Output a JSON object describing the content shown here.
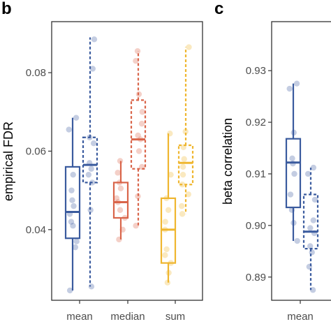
{
  "chart_data": [
    {
      "panel": "b",
      "type": "boxplot",
      "ylabel": "empirical FDR",
      "ylim": [
        0.022,
        0.093
      ],
      "yticks": [
        0.04,
        0.06,
        0.08
      ],
      "ytick_labels": [
        "0.04",
        "0.06",
        "0.08"
      ],
      "categories": [
        "mean",
        "median",
        "sum"
      ],
      "grid": false,
      "groups": [
        {
          "category": "mean",
          "color": "#3a5b9e",
          "boxes": [
            {
              "style": "solid",
              "min": 0.0245,
              "q1": 0.0378,
              "median": 0.0445,
              "q3": 0.056,
              "max": 0.0685,
              "points": [
                0.0685,
                0.0655,
                0.054,
                0.05,
                0.0475,
                0.046,
                0.044,
                0.042,
                0.041,
                0.037,
                0.0355,
                0.0245
              ]
            },
            {
              "style": "dashed",
              "min": 0.0255,
              "q1": 0.052,
              "median": 0.0565,
              "q3": 0.0635,
              "max": 0.089,
              "points": [
                0.0885,
                0.081,
                0.0635,
                0.062,
                0.057,
                0.0555,
                0.054,
                0.052,
                0.045,
                0.0255
              ]
            }
          ]
        },
        {
          "category": "median",
          "color": "#d9654a",
          "boxes": [
            {
              "style": "solid",
              "min": 0.0375,
              "q1": 0.043,
              "median": 0.047,
              "q3": 0.052,
              "max": 0.0575,
              "points": [
                0.0575,
                0.0545,
                0.052,
                0.0505,
                0.048,
                0.047,
                0.045,
                0.043,
                0.04,
                0.0375
              ]
            },
            {
              "style": "dashed",
              "min": 0.041,
              "q1": 0.0555,
              "median": 0.063,
              "q3": 0.073,
              "max": 0.0855,
              "points": [
                0.0855,
                0.083,
                0.0745,
                0.07,
                0.067,
                0.064,
                0.063,
                0.06,
                0.056,
                0.0485,
                0.041
              ]
            }
          ]
        },
        {
          "category": "sum",
          "color": "#efb62f",
          "boxes": [
            {
              "style": "solid",
              "min": 0.0265,
              "q1": 0.0315,
              "median": 0.04,
              "q3": 0.048,
              "max": 0.0645,
              "points": [
                0.0645,
                0.054,
                0.048,
                0.045,
                0.042,
                0.04,
                0.035,
                0.0335,
                0.0315,
                0.029,
                0.0265
              ]
            },
            {
              "style": "dashed",
              "min": 0.044,
              "q1": 0.0515,
              "median": 0.057,
              "q3": 0.0615,
              "max": 0.0865,
              "points": [
                0.0865,
                0.065,
                0.061,
                0.058,
                0.056,
                0.054,
                0.0515,
                0.049,
                0.046,
                0.044
              ]
            }
          ]
        }
      ]
    },
    {
      "panel": "c",
      "type": "boxplot",
      "ylabel": "beta correlation",
      "ylim": [
        0.8855,
        0.9395
      ],
      "yticks": [
        0.89,
        0.9,
        0.91,
        0.92,
        0.93
      ],
      "ytick_labels": [
        "0.89",
        "0.90",
        "0.91",
        "0.92",
        "0.93"
      ],
      "categories": [
        "mean"
      ],
      "truncated_tick": "m",
      "grid": false,
      "groups": [
        {
          "category": "mean",
          "color": "#3a5b9e",
          "boxes": [
            {
              "style": "solid",
              "min": 0.897,
              "q1": 0.9035,
              "median": 0.9122,
              "q3": 0.9168,
              "max": 0.9275,
              "points": [
                0.9275,
                0.9265,
                0.918,
                0.913,
                0.912,
                0.91,
                0.906,
                0.903,
                0.9005,
                0.897
              ]
            },
            {
              "style": "dashed",
              "min": 0.8875,
              "q1": 0.8955,
              "median": 0.8988,
              "q3": 0.906,
              "max": 0.9112,
              "points": [
                0.9112,
                0.91,
                0.905,
                0.901,
                0.8995,
                0.8985,
                0.896,
                0.8948,
                0.892,
                0.8875
              ]
            }
          ]
        }
      ]
    }
  ]
}
